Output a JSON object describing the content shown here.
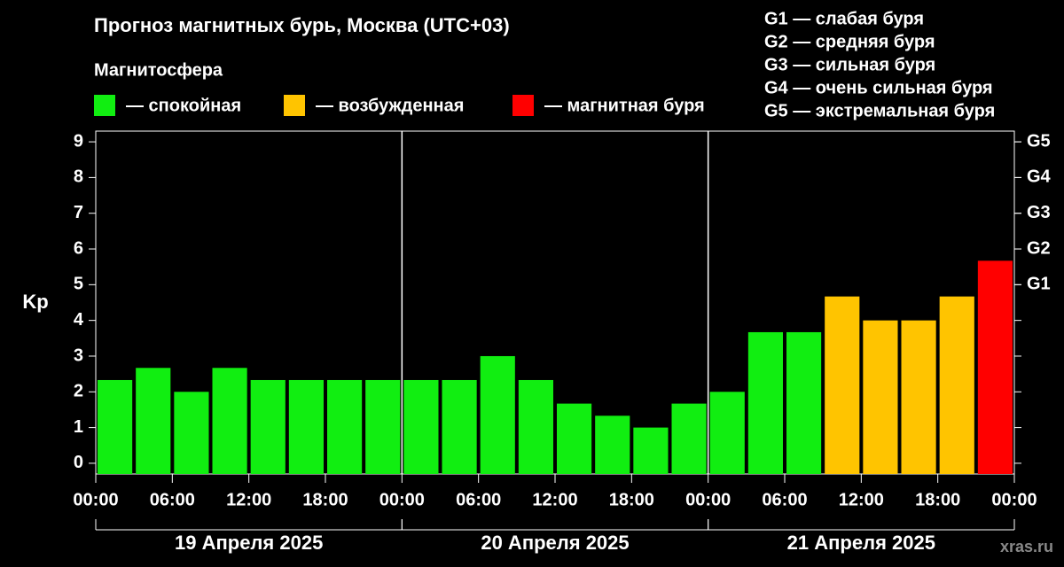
{
  "chart_data": {
    "type": "bar",
    "title": "Прогноз магнитных бурь, Москва (UTC+03)",
    "subtitle": "Магнитосфера",
    "legend": [
      {
        "color": "#11ee11",
        "label": "— спокойная"
      },
      {
        "color": "#ffc400",
        "label": "— возбужденная"
      },
      {
        "color": "#ff0000",
        "label": "— магнитная буря"
      }
    ],
    "storm_levels": [
      "G1 — слабая буря",
      "G2 — средняя буря",
      "G3 — сильная буря",
      "G4 — очень сильная буря",
      "G5 — экстремальная буря"
    ],
    "y_label": "Kp",
    "x": [
      0,
      3,
      6,
      9,
      12,
      15,
      18,
      21,
      24,
      27,
      30,
      33,
      36,
      39,
      42,
      45,
      48,
      51,
      54,
      57,
      60,
      63,
      66,
      69
    ],
    "bar_width": 3,
    "values": [
      2.33,
      2.67,
      2,
      2.67,
      2.33,
      2.33,
      2.33,
      2.33,
      2.33,
      2.33,
      3,
      2.33,
      1.67,
      1.33,
      1,
      1.67,
      2,
      3.67,
      3.67,
      4.67,
      4,
      4,
      4.67,
      5.67
    ],
    "colors": [
      "#11ee11",
      "#11ee11",
      "#11ee11",
      "#11ee11",
      "#11ee11",
      "#11ee11",
      "#11ee11",
      "#11ee11",
      "#11ee11",
      "#11ee11",
      "#11ee11",
      "#11ee11",
      "#11ee11",
      "#11ee11",
      "#11ee11",
      "#11ee11",
      "#11ee11",
      "#11ee11",
      "#11ee11",
      "#ffc400",
      "#ffc400",
      "#ffc400",
      "#ffc400",
      "#ff0000"
    ],
    "xlim": [
      0,
      72
    ],
    "xticks": [
      {
        "value": 0,
        "label": "00:00"
      },
      {
        "value": 6,
        "label": "06:00"
      },
      {
        "value": 12,
        "label": "12:00"
      },
      {
        "value": 18,
        "label": "18:00"
      },
      {
        "value": 24,
        "label": "00:00"
      },
      {
        "value": 30,
        "label": "06:00"
      },
      {
        "value": 36,
        "label": "12:00"
      },
      {
        "value": 42,
        "label": "18:00"
      },
      {
        "value": 48,
        "label": "00:00"
      },
      {
        "value": 54,
        "label": "06:00"
      },
      {
        "value": 60,
        "label": "12:00"
      },
      {
        "value": 66,
        "label": "18:00"
      },
      {
        "value": 72,
        "label": "00:00"
      }
    ],
    "ylim": [
      -0.3,
      9.3
    ],
    "yticks": [
      0,
      1,
      2,
      3,
      4,
      5,
      6,
      7,
      8,
      9
    ],
    "y2lim": [
      -0.3,
      9.3
    ],
    "y2ticks": [
      {
        "value": 5,
        "label": "G1"
      },
      {
        "value": 6,
        "label": "G2"
      },
      {
        "value": 7,
        "label": "G3"
      },
      {
        "value": 8,
        "label": "G4"
      },
      {
        "value": 9,
        "label": "G5"
      }
    ],
    "days": [
      {
        "label": "19 Апреля 2025",
        "start": 0,
        "end": 24
      },
      {
        "label": "20 Апреля 2025",
        "start": 24,
        "end": 48
      },
      {
        "label": "21 Апреля 2025",
        "start": 48,
        "end": 72
      }
    ],
    "watermark": "xras.ru"
  }
}
